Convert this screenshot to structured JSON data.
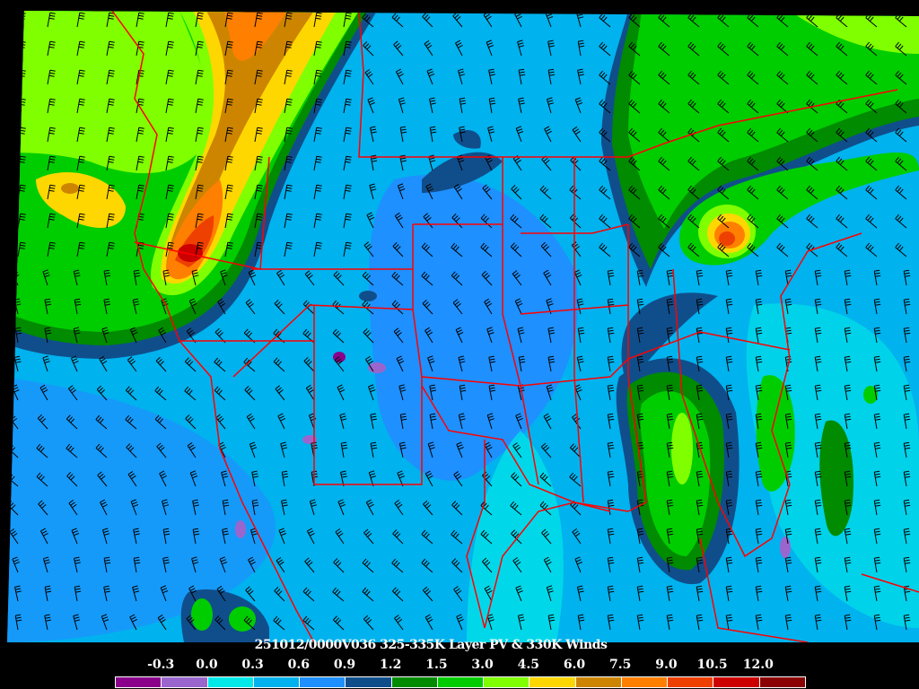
{
  "title": "251012/0000V036 325-335K Layer PV & 330K Winds",
  "colorbar": {
    "labels": [
      "-0.3",
      "0.0",
      "0.3",
      "0.6",
      "0.9",
      "1.2",
      "1.5",
      "3.0",
      "4.5",
      "6.0",
      "7.5",
      "9.0",
      "10.5",
      "12.0"
    ],
    "colors": [
      "#8b008b",
      "#9a66cd",
      "#00e8e8",
      "#00b2ee",
      "#1e90ff",
      "#104e8b",
      "#008b00",
      "#00cd00",
      "#7fff00",
      "#ffd700",
      "#cd8500",
      "#ff7f00",
      "#ee4000",
      "#cd0000",
      "#8b0000"
    ]
  },
  "map": {
    "background_color": "#00b2ee",
    "border_color": "#ff0000",
    "barb_color": "#000000"
  }
}
